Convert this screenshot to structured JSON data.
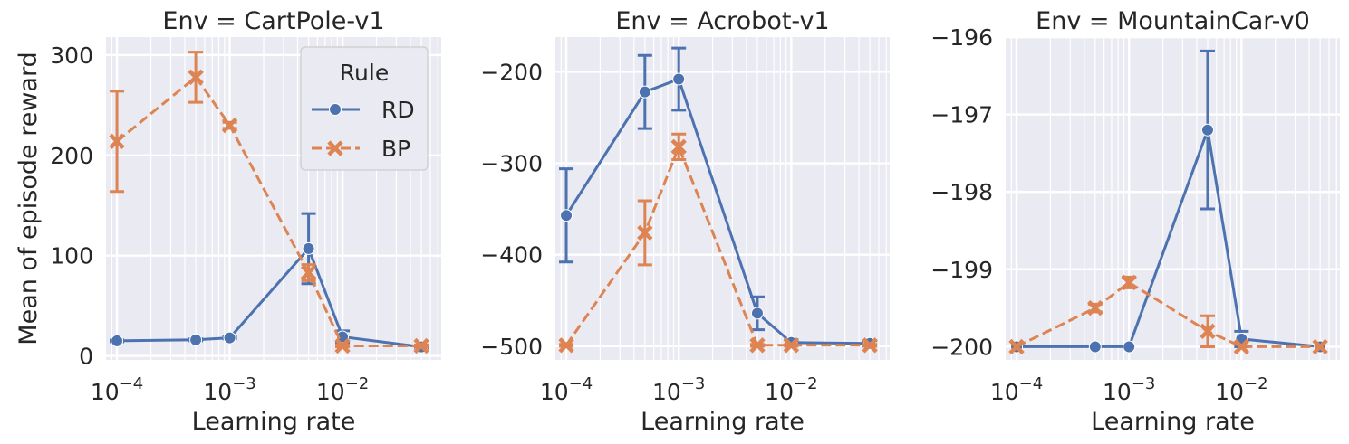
{
  "colors": {
    "RD": "#4c72b0",
    "BP": "#dd8452",
    "panel_bg": "#eaeaf2",
    "grid": "#ffffff"
  },
  "legend": {
    "title": "Rule",
    "placement": "upper right of first panel"
  },
  "chart_data": [
    {
      "type": "line",
      "title": "Env = CartPole-v1",
      "xlabel": "Learning rate",
      "ylabel": "Mean of episode reward",
      "xscale": "log",
      "xlim": [
        8e-05,
        0.075
      ],
      "ylim": [
        -4,
        318
      ],
      "yticks": [
        0,
        100,
        200,
        300
      ],
      "series": [
        {
          "name": "RD",
          "x": [
            0.0001,
            0.0005,
            0.001,
            0.005,
            0.01,
            0.05
          ],
          "y": [
            15,
            16,
            18,
            107,
            19,
            9
          ],
          "err": [
            1,
            1,
            1,
            35,
            6,
            1
          ]
        },
        {
          "name": "BP",
          "x": [
            0.0001,
            0.0005,
            0.001,
            0.005,
            0.01,
            0.05
          ],
          "y": [
            214,
            278,
            230,
            83,
            10,
            10
          ],
          "err": [
            50,
            25,
            3,
            8,
            1,
            1
          ]
        }
      ]
    },
    {
      "type": "line",
      "title": "Env = Acrobot-v1",
      "xlabel": "Learning rate",
      "ylabel": "",
      "xscale": "log",
      "xlim": [
        8e-05,
        0.075
      ],
      "ylim": [
        -515,
        -162
      ],
      "yticks": [
        -500,
        -400,
        -300,
        -200
      ],
      "series": [
        {
          "name": "RD",
          "x": [
            0.0001,
            0.0005,
            0.001,
            0.005,
            0.01,
            0.05
          ],
          "y": [
            -357,
            -222,
            -208,
            -464,
            -496,
            -497
          ],
          "err": [
            51,
            40,
            34,
            18,
            3,
            3
          ]
        },
        {
          "name": "BP",
          "x": [
            0.0001,
            0.0005,
            0.001,
            0.005,
            0.01,
            0.05
          ],
          "y": [
            -499,
            -376,
            -282,
            -499,
            -499,
            -499
          ],
          "err": [
            1,
            35,
            14,
            1,
            1,
            1
          ]
        }
      ]
    },
    {
      "type": "line",
      "title": "Env = MountainCar-v0",
      "xlabel": "Learning rate",
      "ylabel": "",
      "xscale": "log",
      "xlim": [
        8e-05,
        0.075
      ],
      "ylim": [
        -200.17,
        -196.0
      ],
      "yticks": [
        -200,
        -199,
        -198,
        -197,
        -196
      ],
      "series": [
        {
          "name": "RD",
          "x": [
            0.0001,
            0.0005,
            0.001,
            0.005,
            0.01,
            0.05
          ],
          "y": [
            -200,
            -200,
            -200,
            -197.2,
            -199.9,
            -200
          ],
          "err": [
            0,
            0,
            0,
            1.02,
            0.1,
            0
          ]
        },
        {
          "name": "BP",
          "x": [
            0.0001,
            0.0005,
            0.001,
            0.005,
            0.01,
            0.05
          ],
          "y": [
            -200,
            -199.5,
            -199.17,
            -199.8,
            -200,
            -200
          ],
          "err": [
            0,
            0.05,
            0.07,
            0.2,
            0,
            0
          ]
        }
      ]
    }
  ]
}
